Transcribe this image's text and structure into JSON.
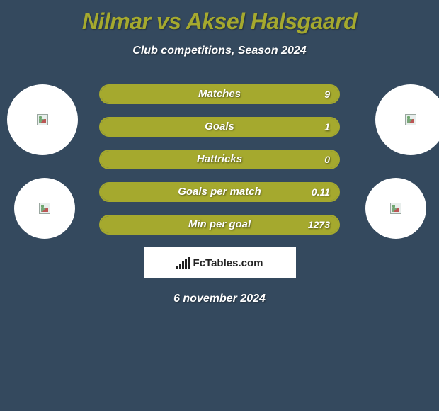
{
  "header": {
    "title": "Nilmar vs Aksel Halsgaard",
    "subtitle": "Club competitions, Season 2024"
  },
  "colors": {
    "background": "#34495e",
    "accent": "#a5a92e",
    "text": "#ffffff",
    "brand_bg": "#ffffff",
    "brand_text": "#222222"
  },
  "stats": [
    {
      "label": "Matches",
      "value": "9",
      "fill_pct": 100
    },
    {
      "label": "Goals",
      "value": "1",
      "fill_pct": 100
    },
    {
      "label": "Hattricks",
      "value": "0",
      "fill_pct": 100
    },
    {
      "label": "Goals per match",
      "value": "0.11",
      "fill_pct": 100
    },
    {
      "label": "Min per goal",
      "value": "1273",
      "fill_pct": 100
    }
  ],
  "circles": {
    "player1_avatar": "placeholder",
    "player2_avatar": "placeholder",
    "club1_logo": "placeholder",
    "club2_logo": "placeholder"
  },
  "brand": {
    "name": "FcTables.com"
  },
  "footer": {
    "date": "6 november 2024"
  }
}
